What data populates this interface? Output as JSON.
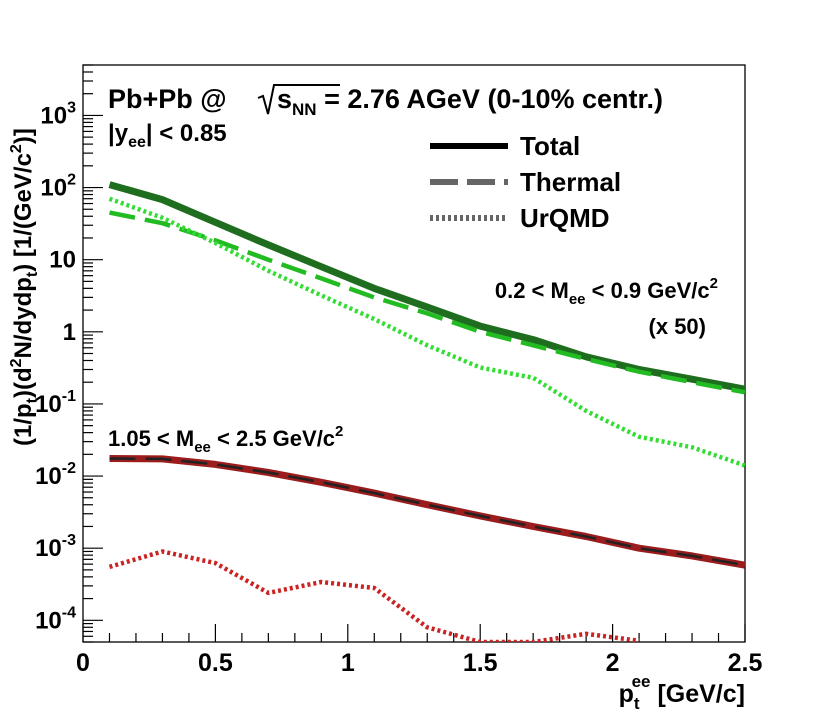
{
  "chart_data": {
    "type": "line",
    "title_parts": {
      "system": "Pb+Pb @ ",
      "sqrt_s": "s",
      "sqrt_sub": "NN",
      "energy": " = 2.76 AGeV (0-10% centr.)"
    },
    "rapidity_cut": {
      "base": "|y",
      "sub": "ee",
      "rest": "| < 0.85"
    },
    "xlabel": {
      "base": "p",
      "sub": "t",
      "sup": "ee",
      "rest": " [GeV/c]"
    },
    "ylabel": {
      "p1": "(1/p",
      "s1": "t",
      "p2": ")(d",
      "sup1": "2",
      "p3": "N/dydp",
      "s2": "t",
      "p4": ") [1/(GeV/c",
      "sup2": "2",
      "p5": ")]"
    },
    "xlim": [
      0,
      2.5
    ],
    "ylim": [
      5e-05,
      5000
    ],
    "x_ticks": [
      {
        "v": 0,
        "label": "0"
      },
      {
        "v": 0.5,
        "label": "0.5"
      },
      {
        "v": 1,
        "label": "1"
      },
      {
        "v": 1.5,
        "label": "1.5"
      },
      {
        "v": 2,
        "label": "2"
      },
      {
        "v": 2.5,
        "label": "2.5"
      }
    ],
    "y_ticks": [
      {
        "v": 0.0001,
        "base": "10",
        "exp": "-4"
      },
      {
        "v": 0.001,
        "base": "10",
        "exp": "-3"
      },
      {
        "v": 0.01,
        "base": "10",
        "exp": "-2"
      },
      {
        "v": 0.1,
        "base": "10",
        "exp": "-1"
      },
      {
        "v": 1,
        "base": "1",
        "exp": ""
      },
      {
        "v": 10,
        "base": "10",
        "exp": ""
      },
      {
        "v": 100,
        "base": "10",
        "exp": "2"
      },
      {
        "v": 1000,
        "base": "10",
        "exp": "3"
      }
    ],
    "legend": [
      {
        "label": "Total",
        "style": "solid"
      },
      {
        "label": "Thermal",
        "style": "dashed"
      },
      {
        "label": "UrQMD",
        "style": "dotted"
      }
    ],
    "annotations": {
      "low_mass": {
        "p1": "0.2 < M",
        "sub": "ee",
        "p2": " < 0.9 GeV/c",
        "sup": "2",
        "scale": "(x 50)"
      },
      "high_mass": {
        "p1": "1.05 < M",
        "sub": "ee",
        "p2": " < 2.5 GeV/c",
        "sup": "2"
      }
    },
    "colors": {
      "low_total": "#1f6e1f",
      "low_thermal": "#22bb22",
      "low_urqmd": "#33dd33",
      "high_total": "#9b1c1c",
      "high_thermal": "#222222",
      "high_urqmd": "#cc2222",
      "legend_line": "#000000",
      "legend_other": "#666666"
    },
    "series": [
      {
        "name": "low-total",
        "style": "solid",
        "color_key": "low_total",
        "x": [
          0.1,
          0.3,
          0.5,
          0.7,
          0.9,
          1.1,
          1.3,
          1.5,
          1.7,
          1.9,
          2.1,
          2.3,
          2.5
        ],
        "y": [
          110,
          68,
          33,
          16,
          8,
          4,
          2.2,
          1.2,
          0.78,
          0.45,
          0.3,
          0.22,
          0.16
        ]
      },
      {
        "name": "low-thermal",
        "style": "dashed",
        "color_key": "low_thermal",
        "x": [
          0.1,
          0.3,
          0.5,
          0.7,
          0.9,
          1.1,
          1.3,
          1.5,
          1.7,
          1.9,
          2.1,
          2.3,
          2.5
        ],
        "y": [
          45,
          32,
          18.5,
          10,
          5.5,
          3,
          1.8,
          1,
          0.65,
          0.42,
          0.28,
          0.2,
          0.145
        ]
      },
      {
        "name": "low-urqmd",
        "style": "dotted",
        "color_key": "low_urqmd",
        "x": [
          0.1,
          0.3,
          0.5,
          0.7,
          0.9,
          1.1,
          1.3,
          1.5,
          1.7,
          1.9,
          2.1,
          2.3,
          2.5
        ],
        "y": [
          70,
          38,
          17,
          7,
          3.2,
          1.5,
          0.65,
          0.32,
          0.23,
          0.08,
          0.035,
          0.025,
          0.014
        ]
      },
      {
        "name": "high-total",
        "style": "solid",
        "color_key": "high_total",
        "x": [
          0.1,
          0.3,
          0.5,
          0.7,
          0.9,
          1.1,
          1.3,
          1.5,
          1.7,
          1.9,
          2.1,
          2.3,
          2.5
        ],
        "y": [
          0.0175,
          0.0173,
          0.0145,
          0.0112,
          0.0082,
          0.0058,
          0.004,
          0.0028,
          0.002,
          0.00145,
          0.001,
          0.00078,
          0.00058
        ]
      },
      {
        "name": "high-thermal",
        "style": "dashed",
        "color_key": "high_thermal",
        "x": [
          0.1,
          0.3,
          0.5,
          0.7,
          0.9,
          1.1,
          1.3,
          1.5,
          1.7,
          1.9,
          2.1,
          2.3,
          2.5
        ],
        "y": [
          0.0175,
          0.0173,
          0.0145,
          0.0112,
          0.0082,
          0.0058,
          0.004,
          0.0028,
          0.002,
          0.00145,
          0.001,
          0.00078,
          0.00058
        ]
      },
      {
        "name": "high-urqmd",
        "style": "dotted",
        "color_key": "high_urqmd",
        "x": [
          0.1,
          0.3,
          0.5,
          0.7,
          0.9,
          1.1,
          1.3,
          1.5,
          1.7,
          1.9,
          2.1
        ],
        "y": [
          0.00055,
          0.0009,
          0.00062,
          0.00024,
          0.00034,
          0.00028,
          8e-05,
          5e-05,
          5e-05,
          6.5e-05,
          5.2e-05
        ]
      }
    ]
  }
}
